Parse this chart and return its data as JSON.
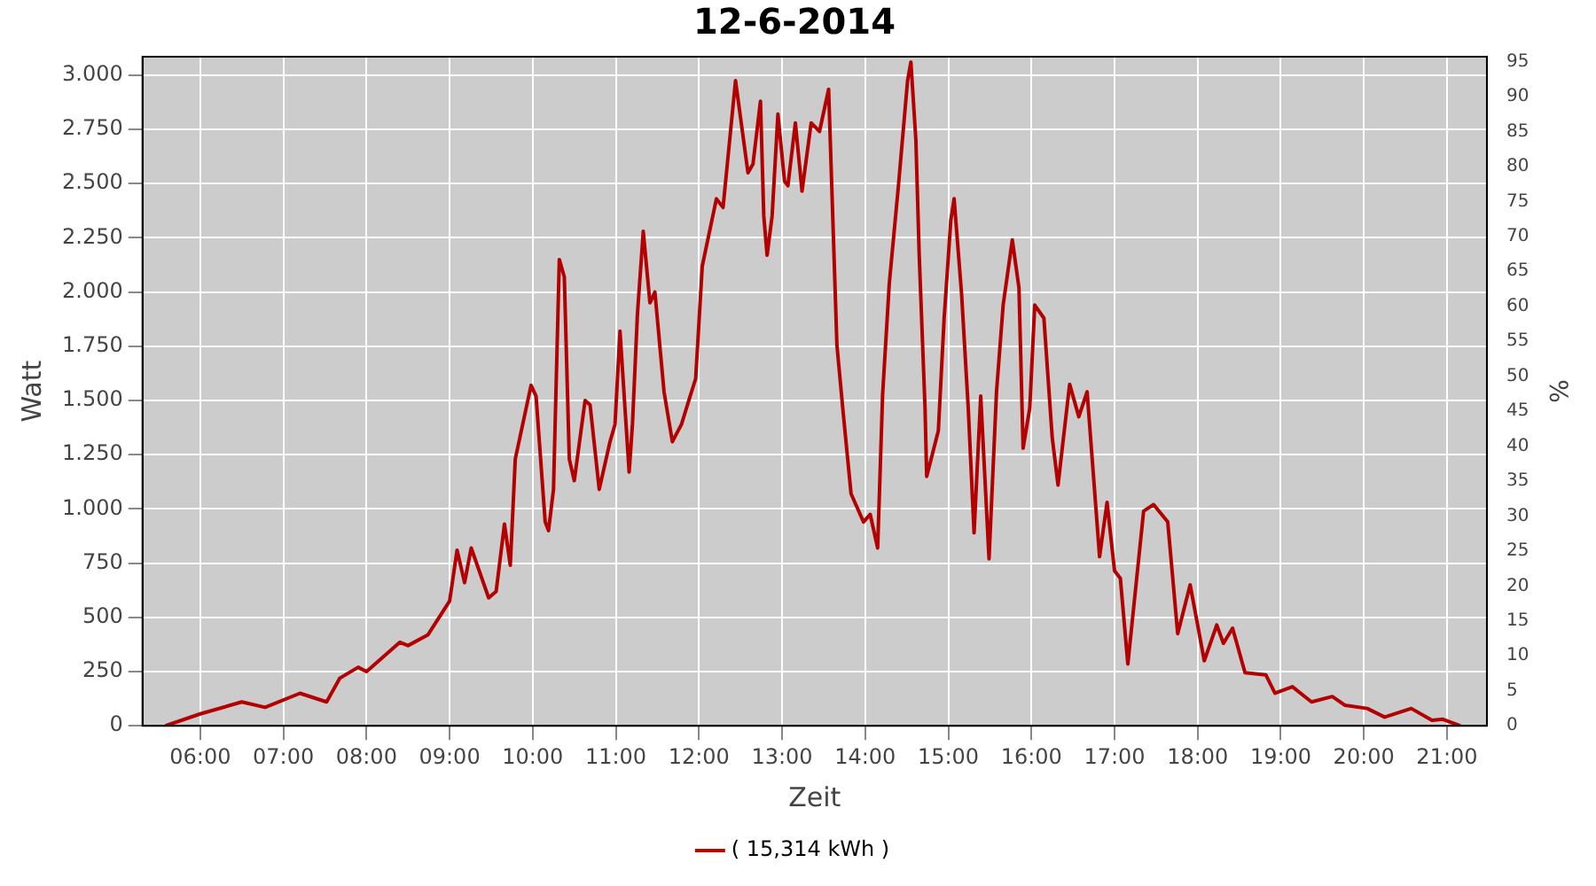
{
  "chart_data": {
    "type": "line",
    "title": "12-6-2014",
    "xlabel": "Zeit",
    "ylabel": "Watt",
    "y2label": "%",
    "xlim": [
      5.305,
      21.48
    ],
    "xticks": [
      {
        "value": 6,
        "label": "06:00"
      },
      {
        "value": 7,
        "label": "07:00"
      },
      {
        "value": 8,
        "label": "08:00"
      },
      {
        "value": 9,
        "label": "09:00"
      },
      {
        "value": 10,
        "label": "10:00"
      },
      {
        "value": 11,
        "label": "11:00"
      },
      {
        "value": 12,
        "label": "12:00"
      },
      {
        "value": 13,
        "label": "13:00"
      },
      {
        "value": 14,
        "label": "14:00"
      },
      {
        "value": 15,
        "label": "15:00"
      },
      {
        "value": 16,
        "label": "16:00"
      },
      {
        "value": 17,
        "label": "17:00"
      },
      {
        "value": 18,
        "label": "18:00"
      },
      {
        "value": 19,
        "label": "19:00"
      },
      {
        "value": 20,
        "label": "20:00"
      },
      {
        "value": 21,
        "label": "21:00"
      }
    ],
    "ylim": [
      0,
      3085
    ],
    "yticks": [
      0,
      250,
      500,
      750,
      {
        "value": 1000,
        "label": "1.000"
      },
      {
        "value": 1250,
        "label": "1.250"
      },
      {
        "value": 1500,
        "label": "1.500"
      },
      {
        "value": 1750,
        "label": "1.750"
      },
      {
        "value": 2000,
        "label": "2.000"
      },
      {
        "value": 2250,
        "label": "2.250"
      },
      {
        "value": 2500,
        "label": "2.500"
      },
      {
        "value": 2750,
        "label": "2.750"
      },
      {
        "value": 3000,
        "label": "3.000"
      }
    ],
    "y2lim": [
      0,
      95.7
    ],
    "y2ticks": [
      0,
      5,
      10,
      15,
      20,
      25,
      30,
      35,
      40,
      45,
      50,
      55,
      60,
      65,
      70,
      75,
      80,
      85,
      90,
      95
    ],
    "grid": true,
    "legend": "bottom",
    "series": [
      {
        "name": "( 15,314 kWh )",
        "color": "#b30000",
        "x": [
          5.58,
          6.0,
          6.5,
          6.78,
          7.2,
          7.52,
          7.68,
          7.9,
          8.0,
          8.4,
          8.5,
          8.74,
          9.0,
          9.09,
          9.18,
          9.26,
          9.47,
          9.56,
          9.66,
          9.73,
          9.79,
          9.98,
          10.04,
          10.15,
          10.19,
          10.25,
          10.32,
          10.38,
          10.44,
          10.5,
          10.63,
          10.69,
          10.8,
          10.93,
          10.99,
          11.05,
          11.16,
          11.2,
          11.26,
          11.33,
          11.41,
          11.47,
          11.58,
          11.68,
          11.79,
          11.87,
          11.96,
          12.04,
          12.21,
          12.29,
          12.44,
          12.59,
          12.65,
          12.74,
          12.78,
          12.82,
          12.88,
          12.95,
          13.03,
          13.07,
          13.16,
          13.24,
          13.35,
          13.45,
          13.56,
          13.66,
          13.73,
          13.83,
          13.98,
          14.06,
          14.15,
          14.21,
          14.29,
          14.4,
          14.51,
          14.55,
          14.61,
          14.65,
          14.72,
          14.74,
          14.88,
          14.95,
          15.03,
          15.07,
          15.16,
          15.24,
          15.31,
          15.39,
          15.49,
          15.58,
          15.66,
          15.77,
          15.85,
          15.9,
          15.98,
          16.04,
          16.15,
          16.25,
          16.32,
          16.46,
          16.57,
          16.67,
          16.82,
          16.91,
          17.0,
          17.07,
          17.16,
          17.35,
          17.47,
          17.64,
          17.76,
          17.91,
          18.08,
          18.23,
          18.31,
          18.42,
          18.57,
          18.82,
          18.93,
          19.14,
          19.37,
          19.62,
          19.77,
          20.04,
          20.25,
          20.57,
          20.82,
          20.95,
          21.16
        ],
        "values": [
          0,
          55,
          110,
          85,
          150,
          110,
          220,
          270,
          250,
          385,
          370,
          420,
          575,
          810,
          660,
          820,
          590,
          620,
          930,
          740,
          1230,
          1570,
          1520,
          940,
          900,
          1090,
          2150,
          2070,
          1230,
          1130,
          1500,
          1480,
          1090,
          1310,
          1390,
          1820,
          1170,
          1390,
          1900,
          2280,
          1950,
          2000,
          1540,
          1310,
          1390,
          1490,
          1600,
          2120,
          2430,
          2390,
          2975,
          2550,
          2590,
          2880,
          2350,
          2170,
          2350,
          2820,
          2510,
          2490,
          2780,
          2465,
          2780,
          2740,
          2935,
          1755,
          1465,
          1070,
          940,
          975,
          820,
          1530,
          2040,
          2490,
          2975,
          3060,
          2700,
          2170,
          1465,
          1150,
          1360,
          1880,
          2330,
          2430,
          1990,
          1465,
          890,
          1520,
          770,
          1540,
          1940,
          2240,
          2020,
          1280,
          1465,
          1940,
          1880,
          1330,
          1110,
          1575,
          1425,
          1540,
          780,
          1030,
          715,
          680,
          285,
          990,
          1020,
          940,
          425,
          650,
          300,
          465,
          380,
          450,
          245,
          235,
          150,
          180,
          110,
          135,
          95,
          80,
          40,
          80,
          25,
          30,
          0
        ]
      }
    ]
  }
}
